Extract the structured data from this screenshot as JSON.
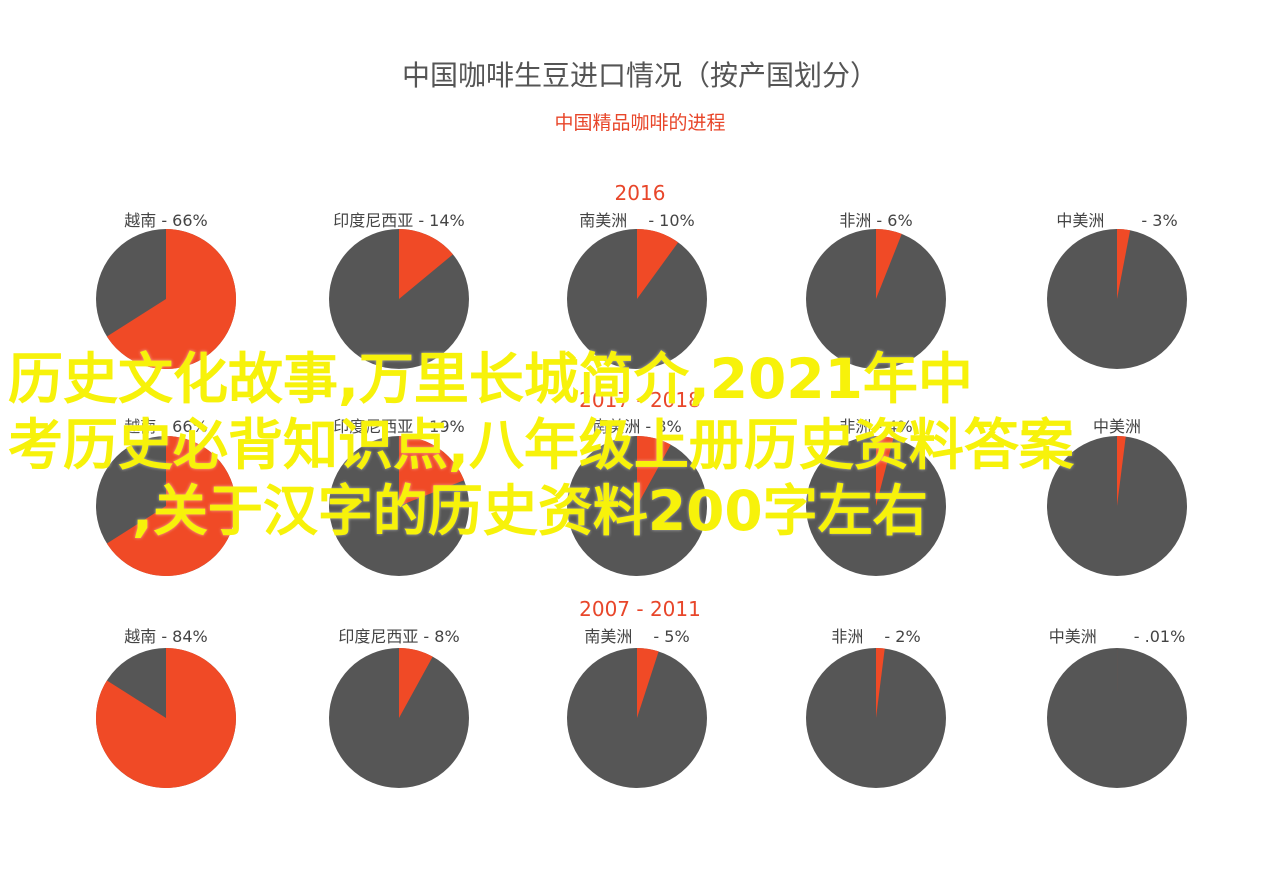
{
  "colors": {
    "share": "#f04a26",
    "rest": "#565656",
    "title": "#555555",
    "accent": "#e8462a",
    "overlay": "#f7f20a"
  },
  "chart_data": {
    "type": "pie",
    "title": "中国咖啡生豆进口情况（按产国划分）",
    "subtitle": "中国精品咖啡的进程",
    "groups": [
      {
        "period": "2016",
        "pies": [
          {
            "label": "越南 - 66%",
            "value": 66
          },
          {
            "label": "印度尼西亚 - 14%",
            "value": 14
          },
          {
            "label": "南美洲　 - 10%",
            "value": 10
          },
          {
            "label": "非洲 - 6%",
            "value": 6
          },
          {
            "label": "中美洲　　 - 3%",
            "value": 3
          }
        ]
      },
      {
        "period": "2017 - 2018",
        "pies": [
          {
            "label": "越南 - 66%",
            "value": 66
          },
          {
            "label": "印度尼西亚 - 19%",
            "value": 19
          },
          {
            "label": "南美洲 - 8%",
            "value": 8
          },
          {
            "label": "非洲 - 4%",
            "value": 4
          },
          {
            "label": "中美洲",
            "value": 2
          }
        ]
      },
      {
        "period": "2007 - 2011",
        "pies": [
          {
            "label": "越南 - 84%",
            "value": 84
          },
          {
            "label": "印度尼西亚 - 8%",
            "value": 8
          },
          {
            "label": "南美洲　 - 5%",
            "value": 5
          },
          {
            "label": "非洲　 - 2%",
            "value": 2
          },
          {
            "label": "中美洲　　 - .01%",
            "value": 0.01
          }
        ]
      }
    ]
  },
  "overlay": {
    "lines": [
      "历史文化故事,万里长城简介,2021年中",
      "考历史必背知识点,八年级上册历史资料答案",
      ",关于汉字的历史资料200字左右"
    ]
  }
}
